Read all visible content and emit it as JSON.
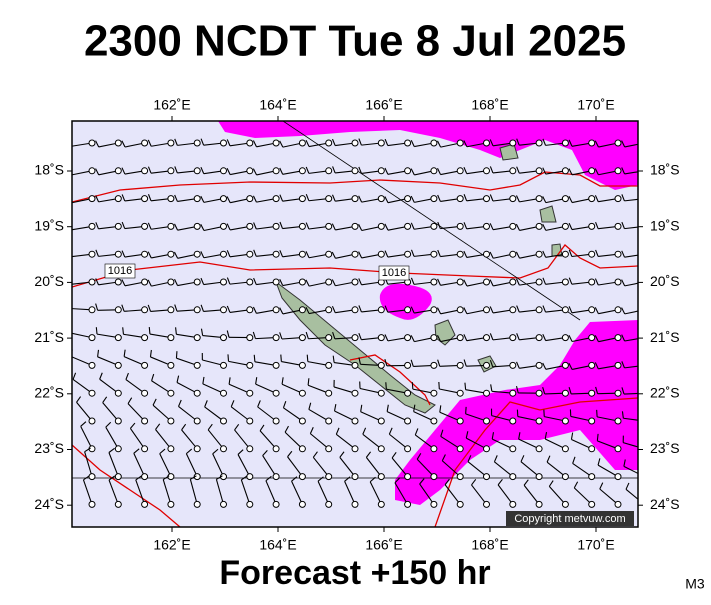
{
  "header": {
    "title": "2300 NCDT Tue 8 Jul 2025"
  },
  "map": {
    "lon_labels": [
      "162˚E",
      "164˚E",
      "166˚E",
      "168˚E",
      "170˚E"
    ],
    "lat_labels": [
      "18˚S",
      "19˚S",
      "20˚S",
      "21˚S",
      "22˚S",
      "23˚S",
      "24˚S"
    ],
    "isobar_labels": [
      "1016",
      "1016"
    ],
    "copyright": "Copyright metvuw.com"
  },
  "footer": {
    "forecast": "Forecast +150 hr",
    "model": "M3"
  }
}
